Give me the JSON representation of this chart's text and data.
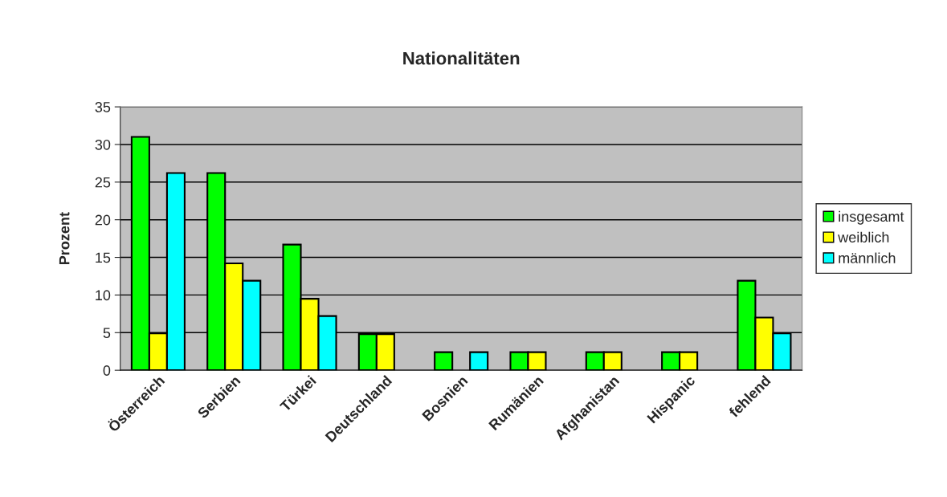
{
  "chart_data": {
    "type": "bar",
    "title": "Nationalitäten",
    "ylabel": "Prozent",
    "categories": [
      "Österreich",
      "Serbien",
      "Türkei",
      "Deutschland",
      "Bosnien",
      "Rumänien",
      "Afghanistan",
      "Hispanic",
      "fehlend"
    ],
    "series": [
      {
        "name": "insgesamt",
        "color": "#00ff00",
        "values": [
          31.0,
          26.2,
          16.7,
          4.8,
          2.4,
          2.4,
          2.4,
          2.4,
          11.9
        ]
      },
      {
        "name": "weiblich",
        "color": "#ffff00",
        "values": [
          4.9,
          14.2,
          9.5,
          4.8,
          null,
          2.4,
          2.4,
          2.4,
          7.0
        ]
      },
      {
        "name": "männlich",
        "color": "#00ffff",
        "values": [
          26.2,
          11.9,
          7.2,
          null,
          2.4,
          null,
          null,
          null,
          4.9
        ]
      }
    ],
    "ylim": [
      0,
      35
    ],
    "yticks": [
      0,
      5,
      10,
      15,
      20,
      25,
      30,
      35
    ],
    "grid": "y",
    "legend": "right"
  }
}
